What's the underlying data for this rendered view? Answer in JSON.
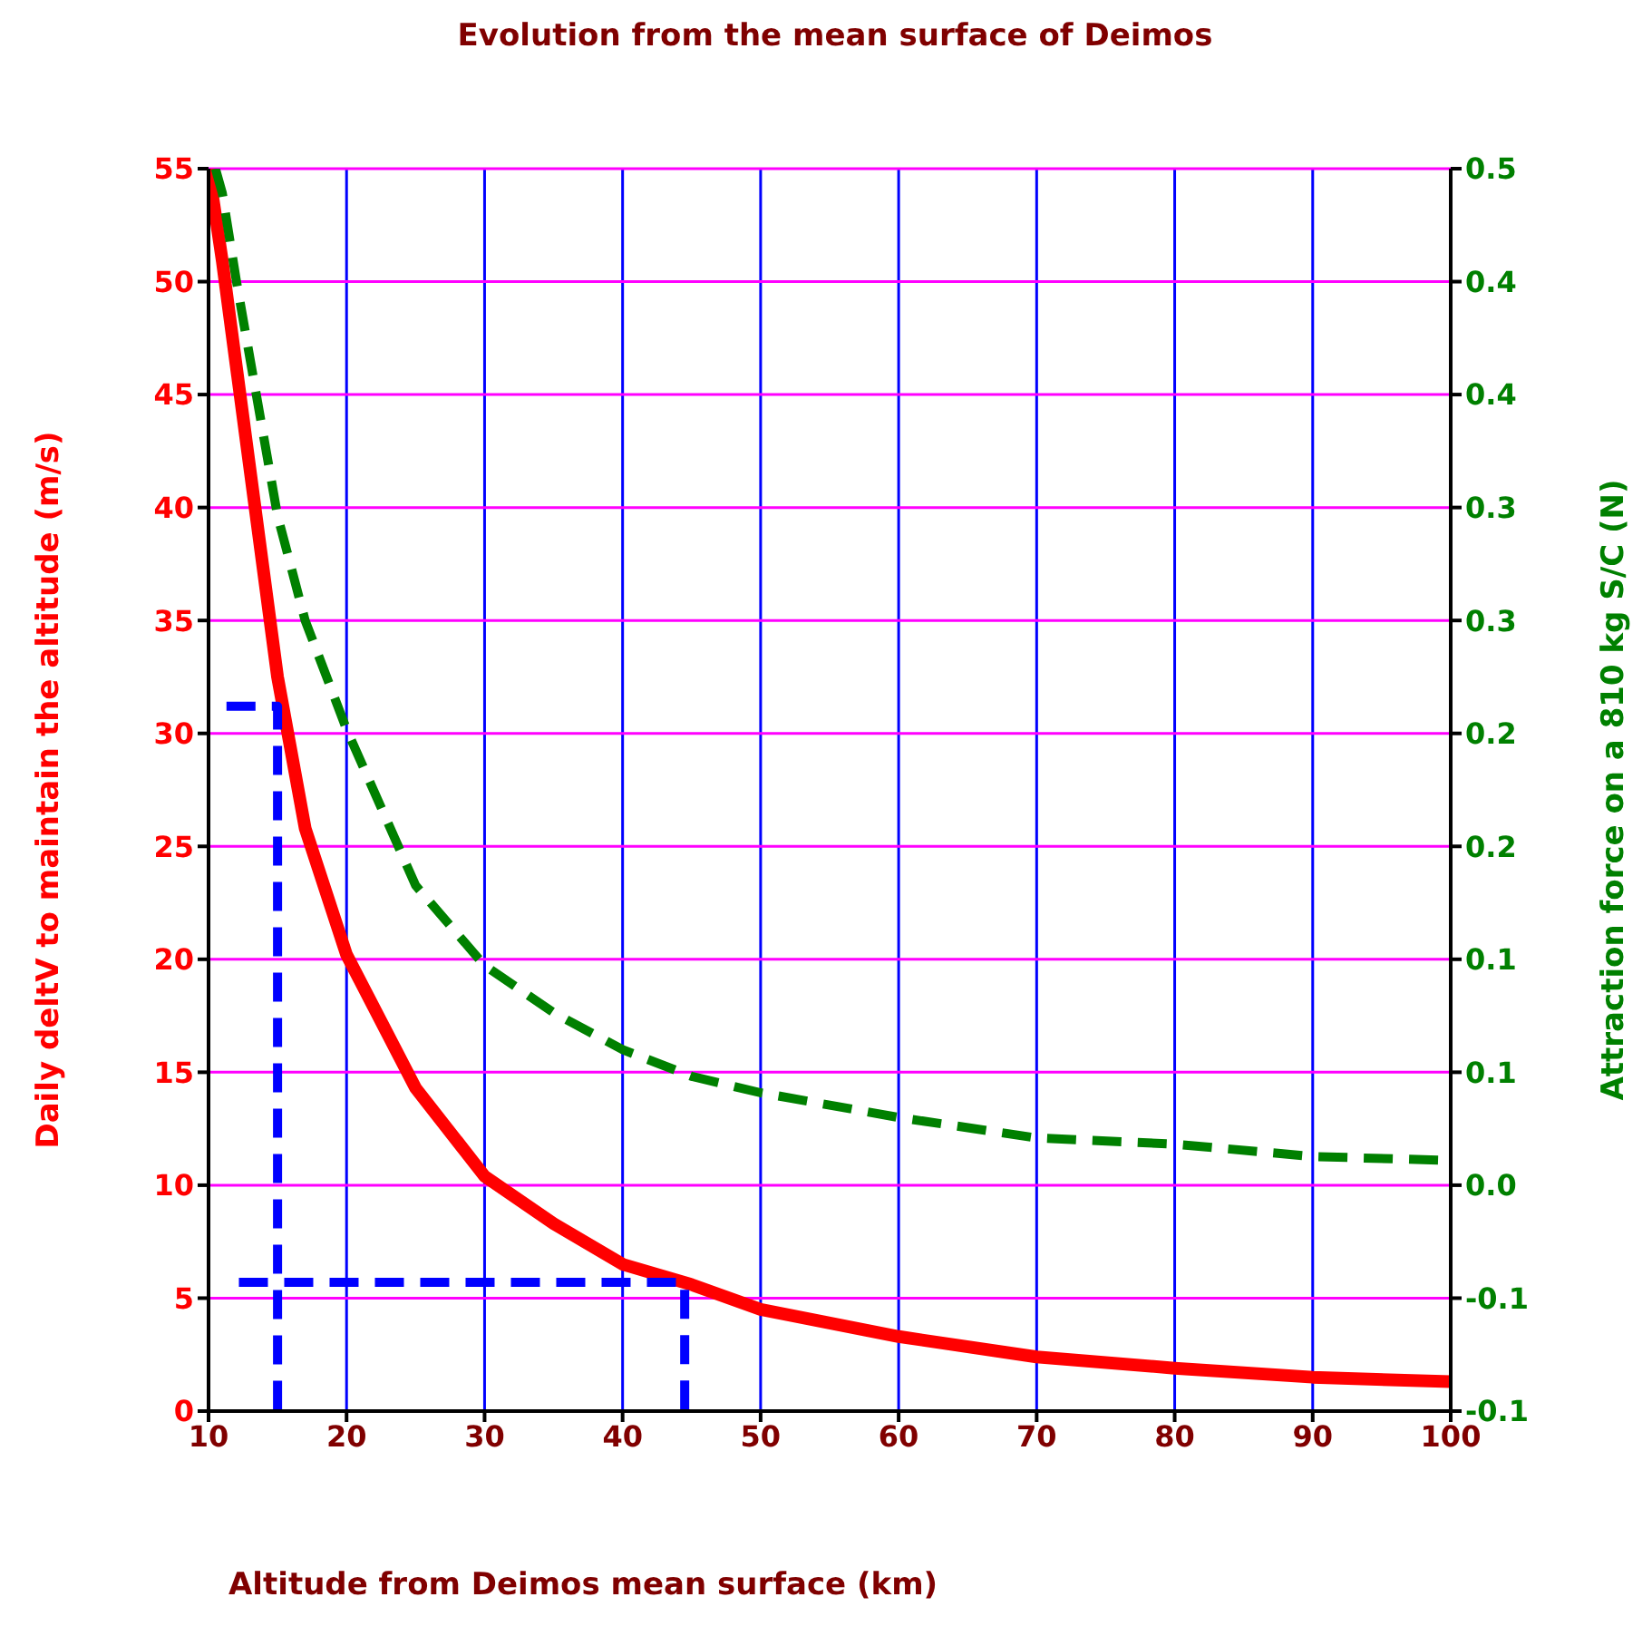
{
  "chart_data": {
    "type": "line",
    "title": "Evolution from the mean surface of Deimos",
    "xlabel": "Altitude from Deimos mean surface (km)",
    "ylabel": "Daily deltV to maintain the altitude (m/s)",
    "y2label": "Attraction force on a 810 kg S/C (N)",
    "xlim": [
      10,
      100
    ],
    "xticks": [
      10,
      20,
      30,
      40,
      50,
      60,
      70,
      80,
      90,
      100
    ],
    "ylim": [
      0,
      55
    ],
    "yticks": [
      0,
      5,
      10,
      15,
      20,
      25,
      30,
      35,
      40,
      45,
      50,
      55
    ],
    "y2lim": [
      -0.105,
      0.5
    ],
    "y2ticks": [
      {
        "value": -0.105,
        "label": "-0.1"
      },
      {
        "value": -0.05,
        "label": "-0.1"
      },
      {
        "value": 0.005,
        "label": "0.0"
      },
      {
        "value": 0.06,
        "label": "0.1"
      },
      {
        "value": 0.115,
        "label": "0.1"
      },
      {
        "value": 0.17,
        "label": "0.2"
      },
      {
        "value": 0.225,
        "label": "0.2"
      },
      {
        "value": 0.28,
        "label": "0.3"
      },
      {
        "value": 0.335,
        "label": "0.3"
      },
      {
        "value": 0.39,
        "label": "0.4"
      },
      {
        "value": 0.445,
        "label": "0.4"
      },
      {
        "value": 0.5,
        "label": "0.5"
      }
    ],
    "grid": true,
    "marker": "none",
    "series": [
      {
        "color": "#ff0000",
        "line_style": "solid",
        "x": [
          10,
          11,
          12,
          15,
          17,
          20,
          25,
          30,
          35,
          40,
          45,
          50,
          60,
          70,
          80,
          90,
          100
        ],
        "values": [
          55,
          50.9,
          46.3,
          32.5,
          25.8,
          20.2,
          14.3,
          10.4,
          8.3,
          6.5,
          5.6,
          4.5,
          3.3,
          2.4,
          1.9,
          1.5,
          1.3
        ]
      },
      {
        "color": "#008000",
        "line_style": "dashed",
        "axis": "y2",
        "x": [
          10.5,
          11,
          12,
          15,
          17,
          20,
          25,
          30,
          35,
          40,
          45,
          50,
          60,
          70,
          80,
          90,
          100
        ],
        "values": [
          0.5,
          0.488,
          0.446,
          0.331,
          0.28,
          0.227,
          0.151,
          0.112,
          0.089,
          0.071,
          0.058,
          0.05,
          0.038,
          0.028,
          0.025,
          0.019,
          0.017
        ]
      },
      {
        "color": "#0000ff",
        "line_style": "dashed",
        "x": [
          11.3,
          15,
          15
        ],
        "values": [
          31.2,
          31.2,
          0
        ]
      },
      {
        "color": "#0000ff",
        "line_style": "dashed",
        "x": [
          12.2,
          44.5,
          44.5
        ],
        "values": [
          5.7,
          5.7,
          0
        ]
      }
    ]
  }
}
